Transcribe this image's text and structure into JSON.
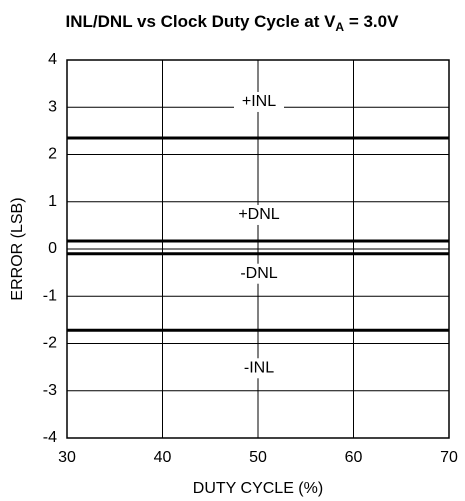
{
  "chart_data": {
    "type": "line",
    "title": "INL/DNL vs Clock Duty Cycle at V",
    "title_subscript": "A",
    "title_suffix": " = 3.0V",
    "x_label": "DUTY CYCLE (%)",
    "y_label": "ERROR (LSB)",
    "x": [
      30,
      70
    ],
    "series": [
      {
        "name": "+INL",
        "color": "#000000",
        "values": [
          2.35,
          2.35
        ]
      },
      {
        "name": "+DNL",
        "color": "#000000",
        "values": [
          0.17,
          0.17
        ]
      },
      {
        "name": "-DNL",
        "color": "#000000",
        "values": [
          -0.1,
          -0.1
        ]
      },
      {
        "name": "-INL",
        "color": "#000000",
        "values": [
          -1.72,
          -1.72
        ]
      }
    ],
    "xlim": [
      30,
      70
    ],
    "xticks": [
      30,
      40,
      50,
      60,
      70
    ],
    "ylim": [
      -4,
      4
    ],
    "yticks": [
      -4,
      -3,
      -2,
      -1,
      0,
      1,
      2,
      3,
      4
    ],
    "grid": true
  }
}
